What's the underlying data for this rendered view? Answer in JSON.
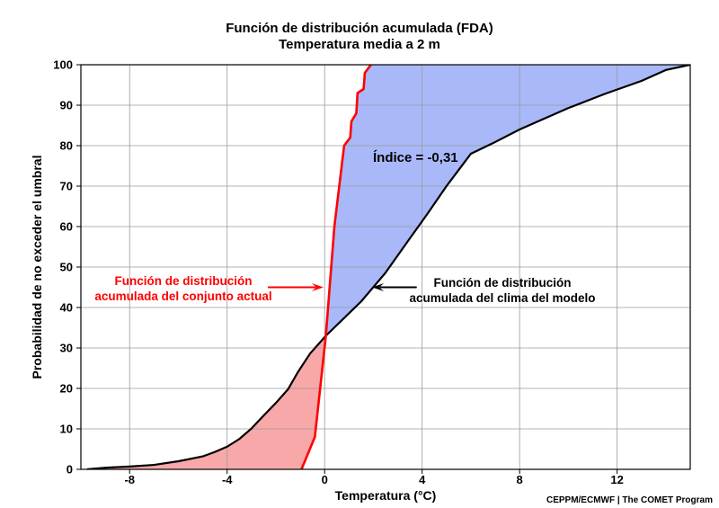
{
  "chart_data": {
    "type": "line",
    "title": "Función de distribución acumulada (FDA)",
    "subtitle": "Temperatura media a 2 m",
    "xlabel": "Temperatura (°C)",
    "ylabel": "Probabilidad de no exceder el umbral",
    "xlim": [
      -10,
      15
    ],
    "ylim": [
      0,
      100
    ],
    "x_ticks": [
      -8,
      -4,
      0,
      4,
      8,
      12
    ],
    "y_ticks": [
      0,
      10,
      20,
      30,
      40,
      50,
      60,
      70,
      80,
      90,
      100
    ],
    "x_tick_labels": [
      "-8",
      "-4",
      "0",
      "4",
      "8",
      "12"
    ],
    "y_tick_labels": [
      "0",
      "10",
      "20",
      "30",
      "40",
      "50",
      "60",
      "70",
      "80",
      "90",
      "100"
    ],
    "grid": true,
    "series": [
      {
        "name": "Función de distribución acumulada del conjunto actual",
        "color": "#ff0000",
        "points": [
          [
            -0.95,
            0
          ],
          [
            -0.4,
            8
          ],
          [
            0.05,
            33
          ],
          [
            0.4,
            60
          ],
          [
            0.8,
            80
          ],
          [
            1.05,
            82
          ],
          [
            1.1,
            86
          ],
          [
            1.3,
            88
          ],
          [
            1.35,
            93
          ],
          [
            1.6,
            94
          ],
          [
            1.65,
            98
          ],
          [
            1.9,
            100
          ]
        ]
      },
      {
        "name": "Función de distribución acumulada del clima del modelo",
        "color": "#000000",
        "points": [
          [
            -9.75,
            0
          ],
          [
            -9,
            0.4
          ],
          [
            -8,
            0.7
          ],
          [
            -7,
            1.1
          ],
          [
            -6,
            2
          ],
          [
            -5,
            3.2
          ],
          [
            -4.5,
            4.3
          ],
          [
            -4,
            5.6
          ],
          [
            -3.5,
            7.5
          ],
          [
            -3,
            10.1
          ],
          [
            -2.5,
            13.3
          ],
          [
            -2,
            16.4
          ],
          [
            -1.5,
            19.8
          ],
          [
            -1.1,
            24
          ],
          [
            -0.6,
            28.6
          ],
          [
            0.05,
            33
          ],
          [
            1.5,
            41.5
          ],
          [
            2.5,
            48.6
          ],
          [
            3.5,
            57.1
          ],
          [
            4.2,
            63
          ],
          [
            5,
            70
          ],
          [
            6,
            78
          ],
          [
            6.9,
            80.6
          ],
          [
            8,
            84
          ],
          [
            10,
            89.3
          ],
          [
            11.5,
            92.8
          ],
          [
            13,
            96
          ],
          [
            14,
            98.7
          ],
          [
            15,
            100
          ]
        ]
      }
    ],
    "shading": {
      "ensemble_greater_color": "#a9b8f8",
      "climate_greater_color": "#f8a8a8"
    },
    "annotations": [
      {
        "text": "Índice = -0,31",
        "x": 1.85,
        "y": 77
      },
      {
        "text_line1": "Función de distribución",
        "text_line2": "acumulada del conjunto actual",
        "color": "#ff0000"
      },
      {
        "text_line1": "Función de distribución",
        "text_line2": "acumulada del clima del modelo",
        "color": "#000000"
      }
    ],
    "arrows": [
      {
        "from": [
          -2.3,
          45
        ],
        "to": [
          -0.05,
          45
        ],
        "color": "#ff0000"
      },
      {
        "from": [
          3.75,
          45
        ],
        "to": [
          1.95,
          45
        ],
        "color": "#000000"
      }
    ]
  },
  "credit": "CEPPM/ECMWF | The COMET Program"
}
